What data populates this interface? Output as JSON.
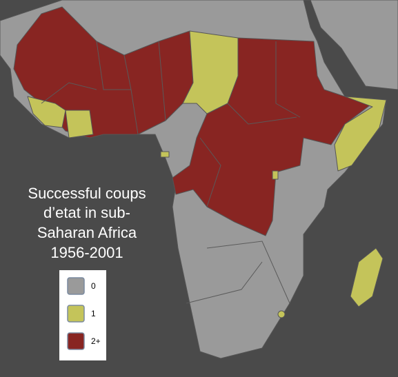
{
  "title_lines": [
    "Successful coups",
    "d’etat in sub-",
    "Saharan Africa",
    "1956-2001"
  ],
  "legend": [
    {
      "label": "0",
      "color": "#9a9a9a"
    },
    {
      "label": "1",
      "color": "#c4c45a"
    },
    {
      "label": "2+",
      "color": "#882522"
    }
  ]
}
